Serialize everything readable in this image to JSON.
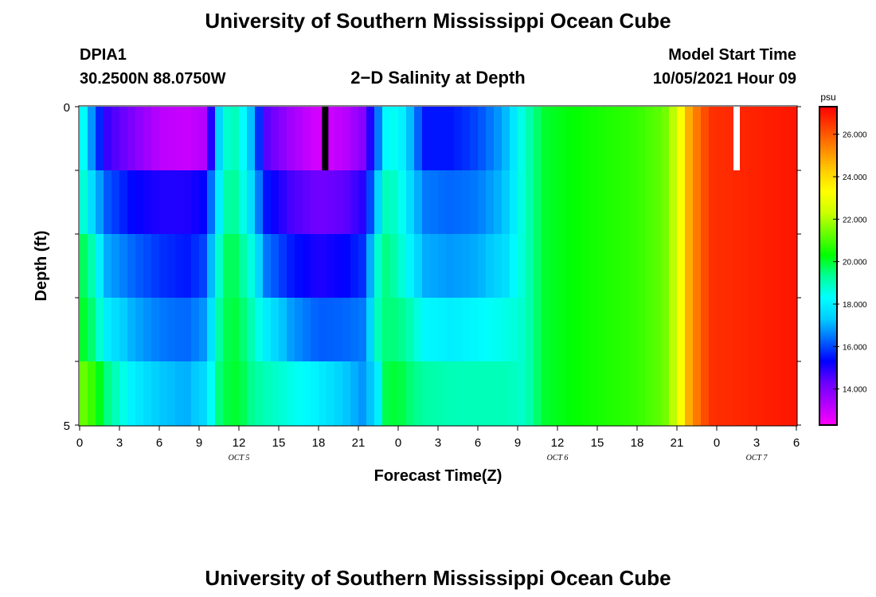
{
  "header": {
    "title": "University of Southern Mississippi Ocean Cube",
    "station": "DPIA1",
    "coords": "30.2500N  88.0750W",
    "subtitle": "2−D Salinity at Depth",
    "model_start_label": "Model Start Time",
    "model_start_value": "10/05/2021 Hour 09"
  },
  "footer": {
    "title": "University of Southern Mississippi Ocean Cube"
  },
  "chart_data": {
    "type": "heatmap",
    "title": "2−D Salinity at Depth",
    "xlabel": "Forecast Time(Z)",
    "ylabel": "Depth (ft)",
    "x_tick_labels": [
      "0",
      "3",
      "6",
      "9",
      "12",
      "15",
      "18",
      "21",
      "0",
      "3",
      "6",
      "9",
      "12",
      "15",
      "18",
      "21",
      "0",
      "3",
      "6"
    ],
    "date_labels": [
      {
        "label": "OCT 5",
        "hour": 12
      },
      {
        "label": "OCT 6",
        "hour": 36
      },
      {
        "label": "OCT 7",
        "hour": 51
      }
    ],
    "x_range_hours": [
      0,
      54
    ],
    "y_range": [
      0,
      5
    ],
    "y_tick_labels": [
      "0",
      "5"
    ],
    "depth_layers": 5,
    "colorbar": {
      "unit": "psu",
      "range": [
        12.3,
        27.3
      ],
      "tick_labels": [
        "14.000",
        "16.000",
        "18.000",
        "20.000",
        "22.000",
        "24.000",
        "26.000"
      ],
      "tick_values": [
        14,
        16,
        18,
        20,
        22,
        24,
        26
      ],
      "colors": [
        "#ff00ff",
        "#b300ff",
        "#6a00ff",
        "#0000ff",
        "#0066ff",
        "#00ccff",
        "#00ffff",
        "#00ff99",
        "#00ff00",
        "#66ff00",
        "#ccff00",
        "#ffff00",
        "#ffcc00",
        "#ff8800",
        "#ff4400",
        "#ff0000"
      ]
    },
    "profiles": [
      {
        "hour": 0,
        "values": [
          19.2,
          19.2,
          20.0,
          20.2,
          21.5
        ]
      },
      {
        "hour": 1,
        "values": [
          16.5,
          17.5,
          19.0,
          19.5,
          20.8
        ]
      },
      {
        "hour": 2,
        "values": [
          14.8,
          16.2,
          17.0,
          18.0,
          19.5
        ]
      },
      {
        "hour": 4,
        "values": [
          14.0,
          15.3,
          16.3,
          17.0,
          18.0
        ]
      },
      {
        "hour": 6,
        "values": [
          13.2,
          15.0,
          15.8,
          16.5,
          17.3
        ]
      },
      {
        "hour": 8,
        "values": [
          13.0,
          15.0,
          15.5,
          16.3,
          17.0
        ]
      },
      {
        "hour": 9.5,
        "values": [
          13.3,
          15.3,
          16.0,
          16.8,
          17.6
        ]
      },
      {
        "hour": 10.5,
        "values": [
          17.5,
          18.0,
          18.8,
          19.2,
          19.5
        ]
      },
      {
        "hour": 11.3,
        "values": [
          19.2,
          19.6,
          20.0,
          20.0,
          20.0
        ]
      },
      {
        "hour": 12,
        "values": [
          18.8,
          19.0,
          19.5,
          19.8,
          20.0
        ]
      },
      {
        "hour": 13,
        "values": [
          17.0,
          17.5,
          18.5,
          19.0,
          19.3
        ]
      },
      {
        "hour": 14,
        "values": [
          14.5,
          15.5,
          16.5,
          18.0,
          19.0
        ]
      },
      {
        "hour": 16,
        "values": [
          13.5,
          14.6,
          15.5,
          16.8,
          18.5
        ]
      },
      {
        "hour": 18,
        "values": [
          12.8,
          14.2,
          15.0,
          16.2,
          18.0
        ]
      },
      {
        "hour": 20,
        "values": [
          13.2,
          14.4,
          15.3,
          16.3,
          17.3
        ]
      },
      {
        "hour": 21.5,
        "values": [
          14.0,
          15.0,
          15.8,
          16.5,
          16.7
        ]
      },
      {
        "hour": 22.5,
        "values": [
          16.5,
          17.5,
          18.8,
          19.0,
          18.0
        ]
      },
      {
        "hour": 23,
        "values": [
          18.2,
          19.0,
          19.5,
          19.5,
          19.8
        ]
      },
      {
        "hour": 24,
        "values": [
          18.5,
          18.8,
          19.0,
          19.5,
          20.0
        ]
      },
      {
        "hour": 25,
        "values": [
          17.0,
          17.5,
          18.0,
          19.0,
          19.5
        ]
      },
      {
        "hour": 26,
        "values": [
          15.5,
          16.5,
          17.0,
          18.2,
          19.2
        ]
      },
      {
        "hour": 28,
        "values": [
          15.5,
          16.3,
          16.8,
          18.0,
          19.0
        ]
      },
      {
        "hour": 30,
        "values": [
          16.0,
          16.5,
          17.0,
          18.2,
          19.0
        ]
      },
      {
        "hour": 32,
        "values": [
          17.0,
          17.2,
          17.6,
          18.5,
          19.0
        ]
      },
      {
        "hour": 33.5,
        "values": [
          18.8,
          18.8,
          18.8,
          18.8,
          18.8
        ]
      },
      {
        "hour": 35,
        "values": [
          20.0,
          20.0,
          20.0,
          20.0,
          20.0
        ]
      },
      {
        "hour": 38,
        "values": [
          20.4,
          20.4,
          20.4,
          20.4,
          20.4
        ]
      },
      {
        "hour": 42,
        "values": [
          20.8,
          20.8,
          20.8,
          20.8,
          20.8
        ]
      },
      {
        "hour": 44,
        "values": [
          21.3,
          21.3,
          21.3,
          21.3,
          21.3
        ]
      },
      {
        "hour": 45,
        "values": [
          22.5,
          22.5,
          22.5,
          22.5,
          22.5
        ]
      },
      {
        "hour": 46,
        "values": [
          25.0,
          25.0,
          25.0,
          25.0,
          25.0
        ]
      },
      {
        "hour": 47.5,
        "values": [
          26.6,
          26.6,
          26.6,
          26.6,
          26.6
        ]
      },
      {
        "hour": 54,
        "values": [
          27.0,
          27.0,
          27.0,
          27.0,
          27.0
        ]
      }
    ],
    "markers": [
      {
        "hour": 18.5,
        "color": "#000000"
      },
      {
        "hour": 49.5,
        "color": "#ffffff"
      }
    ]
  }
}
